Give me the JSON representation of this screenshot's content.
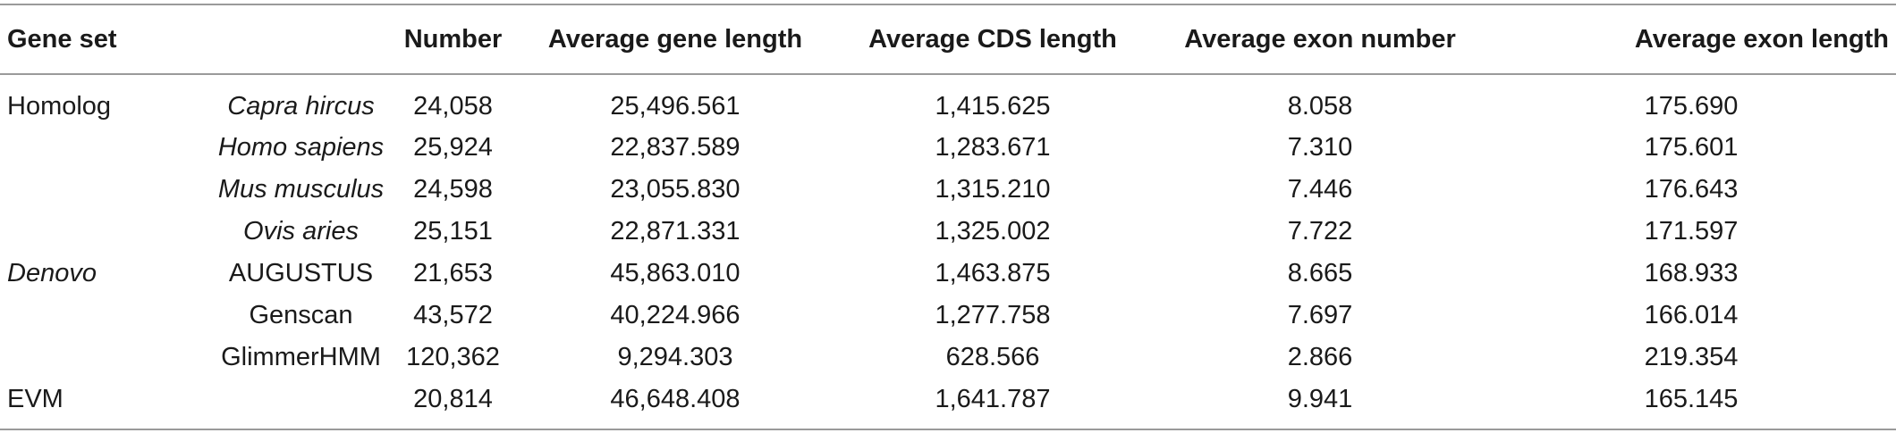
{
  "headers": {
    "gene_set": "Gene set",
    "sub": "",
    "number": "Number",
    "avg_gene_length": "Average gene length",
    "avg_cds_length": "Average CDS length",
    "avg_exon_number": "Average exon number",
    "avg_exon_length": "Average exon length"
  },
  "rows": [
    {
      "gene_set": "Homolog",
      "sub": "Capra hircus",
      "number": "24,058",
      "avg_gene_length": "25,496.561",
      "avg_cds_length": "1,415.625",
      "avg_exon_number": "8.058",
      "avg_exon_length": "175.690"
    },
    {
      "gene_set": "",
      "sub": "Homo sapiens",
      "number": "25,924",
      "avg_gene_length": "22,837.589",
      "avg_cds_length": "1,283.671",
      "avg_exon_number": "7.310",
      "avg_exon_length": "175.601"
    },
    {
      "gene_set": "",
      "sub": "Mus musculus",
      "number": "24,598",
      "avg_gene_length": "23,055.830",
      "avg_cds_length": "1,315.210",
      "avg_exon_number": "7.446",
      "avg_exon_length": "176.643"
    },
    {
      "gene_set": "",
      "sub": "Ovis aries",
      "number": "25,151",
      "avg_gene_length": "22,871.331",
      "avg_cds_length": "1,325.002",
      "avg_exon_number": "7.722",
      "avg_exon_length": "171.597"
    },
    {
      "gene_set": "Denovo",
      "sub": "AUGUSTUS",
      "number": "21,653",
      "avg_gene_length": "45,863.010",
      "avg_cds_length": "1,463.875",
      "avg_exon_number": "8.665",
      "avg_exon_length": "168.933"
    },
    {
      "gene_set": "",
      "sub": "Genscan",
      "number": "43,572",
      "avg_gene_length": "40,224.966",
      "avg_cds_length": "1,277.758",
      "avg_exon_number": "7.697",
      "avg_exon_length": "166.014"
    },
    {
      "gene_set": "",
      "sub": "GlimmerHMM",
      "number": "120,362",
      "avg_gene_length": "9,294.303",
      "avg_cds_length": "628.566",
      "avg_exon_number": "2.866",
      "avg_exon_length": "219.354"
    },
    {
      "gene_set": "EVM",
      "sub": "",
      "number": "20,814",
      "avg_gene_length": "46,648.408",
      "avg_cds_length": "1,641.787",
      "avg_exon_number": "9.941",
      "avg_exon_length": "165.145"
    }
  ]
}
